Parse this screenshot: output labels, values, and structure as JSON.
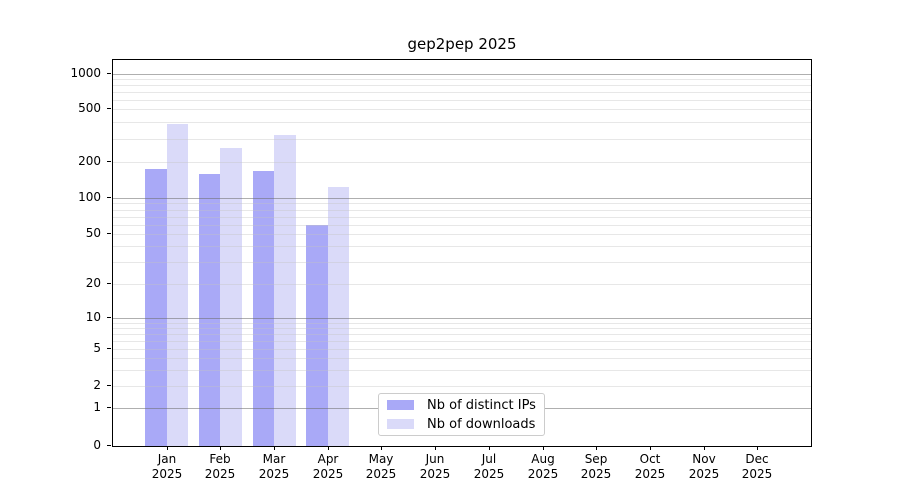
{
  "chart": {
    "title": "gep2pep 2025"
  },
  "colors": {
    "distinct_ips": "#a9a9f7",
    "downloads": "#dadaf9",
    "grid_major": "rgba(110,110,110,0.55)",
    "grid_minor": "rgba(195,195,195,0.40)",
    "axis": "#000000",
    "background": "#ffffff",
    "legend_border": "#cccccc"
  },
  "legend": {
    "items": [
      {
        "label": "Nb of distinct IPs",
        "color_key": "distinct_ips"
      },
      {
        "label": "Nb of downloads",
        "color_key": "downloads"
      }
    ]
  },
  "y_axis": {
    "tick_values": [
      1000,
      500,
      200,
      100,
      50,
      20,
      10,
      5,
      2,
      1,
      0
    ],
    "major_grid_values": [
      1000,
      100,
      10,
      1
    ],
    "minor_grid_values": [
      900,
      800,
      700,
      600,
      500,
      400,
      300,
      200,
      90,
      80,
      70,
      60,
      50,
      40,
      30,
      20,
      9,
      8,
      7,
      6,
      5,
      4,
      3,
      2
    ]
  },
  "x_axis": {
    "categories": [
      {
        "month": "Jan",
        "year": "2025"
      },
      {
        "month": "Feb",
        "year": "2025"
      },
      {
        "month": "Mar",
        "year": "2025"
      },
      {
        "month": "Apr",
        "year": "2025"
      },
      {
        "month": "May",
        "year": "2025"
      },
      {
        "month": "Jun",
        "year": "2025"
      },
      {
        "month": "Jul",
        "year": "2025"
      },
      {
        "month": "Aug",
        "year": "2025"
      },
      {
        "month": "Sep",
        "year": "2025"
      },
      {
        "month": "Oct",
        "year": "2025"
      },
      {
        "month": "Nov",
        "year": "2025"
      },
      {
        "month": "Dec",
        "year": "2025"
      }
    ]
  },
  "chart_data": {
    "type": "bar",
    "title": "gep2pep 2025",
    "categories": [
      "Jan 2025",
      "Feb 2025",
      "Mar 2025",
      "Apr 2025",
      "May 2025",
      "Jun 2025",
      "Jul 2025",
      "Aug 2025",
      "Sep 2025",
      "Oct 2025",
      "Nov 2025",
      "Dec 2025"
    ],
    "series": [
      {
        "name": "Nb of distinct IPs",
        "color": "#a9a9f7",
        "values": [
          175,
          158,
          168,
          60,
          null,
          null,
          null,
          null,
          null,
          null,
          null,
          null
        ]
      },
      {
        "name": "Nb of downloads",
        "color": "#dadaf9",
        "values": [
          383,
          256,
          318,
          124,
          null,
          null,
          null,
          null,
          null,
          null,
          null,
          null
        ]
      }
    ],
    "y_scale": "symlog",
    "y_ticks": [
      0,
      1,
      2,
      5,
      10,
      20,
      50,
      100,
      200,
      500,
      1000
    ],
    "ylim": [
      0,
      1400
    ],
    "xlabel": "",
    "ylabel": "",
    "grid": true,
    "legend_position": "lower center"
  }
}
